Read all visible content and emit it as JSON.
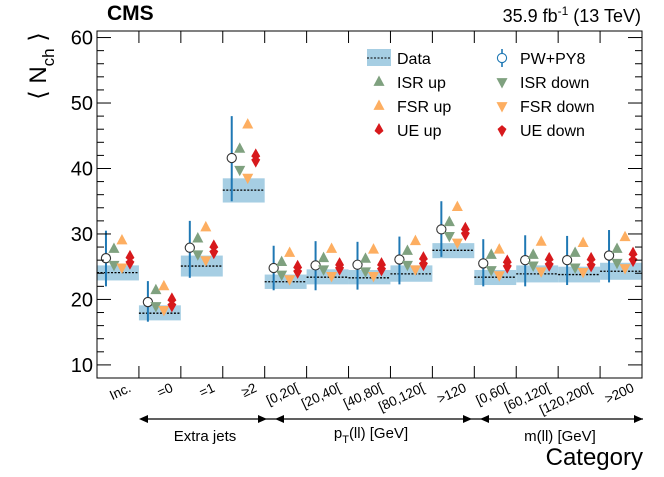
{
  "header": {
    "experiment": "CMS",
    "lumi_value": "35.9 fb",
    "lumi_exp": "-1",
    "lumi_energy": " (13 TeV)"
  },
  "axis_titles": {
    "y_main": "⟨ N",
    "y_sub": "ch",
    "y_close": " ⟩",
    "x": "Category"
  },
  "groups": [
    {
      "label": "Extra jets"
    },
    {
      "label_main": "p",
      "label_sub": "T",
      "label_rest": "(ll) [GeV]"
    },
    {
      "label": "m(ll) [GeV]"
    }
  ],
  "legend": [
    {
      "key": "data",
      "label": "Data"
    },
    {
      "key": "pwpy8",
      "label": "PW+PY8"
    },
    {
      "key": "isr_up",
      "label": "ISR up"
    },
    {
      "key": "isr_down",
      "label": "ISR down"
    },
    {
      "key": "fsr_up",
      "label": "FSR up"
    },
    {
      "key": "fsr_down",
      "label": "FSR down"
    },
    {
      "key": "ue_up",
      "label": "UE up"
    },
    {
      "key": "ue_down",
      "label": "UE down"
    }
  ],
  "colors": {
    "data_band": "#a6cee3",
    "pwpy8": "#1f78b4",
    "isr": "#7fa17f",
    "fsr": "#fdae61",
    "ue": "#d7191c"
  },
  "chart_data": {
    "type": "scatter",
    "title": "",
    "xlabel": "Category",
    "ylabel": "⟨ N_ch ⟩",
    "ylim": [
      8,
      61
    ],
    "yticks": [
      10,
      20,
      30,
      40,
      50,
      60
    ],
    "categories": [
      "Inc.",
      "=0",
      "=1",
      "≥2",
      "[0,20[",
      "[20,40[",
      "[40,80[",
      "[80,120[",
      ">120",
      "[0,60[",
      "[60,120[",
      "[120,200[",
      ">200"
    ],
    "group_ranges": [
      [
        1,
        3
      ],
      [
        4,
        8
      ],
      [
        9,
        12
      ]
    ],
    "data": {
      "values": [
        24.1,
        17.9,
        25.1,
        36.7,
        22.7,
        23.4,
        23.3,
        23.9,
        27.5,
        23.4,
        23.9,
        23.8,
        24.3
      ],
      "band_low": [
        22.9,
        16.8,
        23.5,
        34.8,
        21.6,
        22.3,
        22.3,
        22.7,
        26.3,
        22.2,
        22.6,
        22.6,
        23.0
      ],
      "band_high": [
        25.2,
        19.1,
        26.7,
        38.5,
        23.8,
        24.6,
        24.5,
        25.2,
        28.6,
        24.5,
        25.2,
        25.0,
        25.6
      ]
    },
    "series": [
      {
        "name": "PW+PY8",
        "values": [
          26.3,
          19.6,
          27.9,
          41.6,
          24.8,
          25.2,
          25.3,
          26.1,
          30.7,
          25.5,
          26.0,
          26.0,
          26.7
        ],
        "err_low": [
          22.0,
          16.6,
          23.3,
          35.0,
          21.4,
          21.4,
          21.5,
          22.3,
          26.5,
          22.0,
          22.0,
          22.2,
          22.6
        ],
        "err_high": [
          30.5,
          22.8,
          32.0,
          48.0,
          28.2,
          28.9,
          28.8,
          29.6,
          35.0,
          29.2,
          29.8,
          29.7,
          30.6
        ]
      },
      {
        "name": "ISR up",
        "values": [
          27.7,
          21.4,
          29.3,
          43.0,
          25.7,
          26.3,
          26.2,
          27.4,
          31.8,
          26.8,
          26.8,
          27.1,
          27.7
        ]
      },
      {
        "name": "ISR down",
        "values": [
          25.3,
          19.0,
          26.9,
          39.8,
          23.8,
          24.6,
          24.3,
          25.3,
          29.7,
          24.5,
          25.2,
          24.9,
          25.6
        ]
      },
      {
        "name": "FSR up",
        "values": [
          29.0,
          22.0,
          31.0,
          46.7,
          27.1,
          27.7,
          27.6,
          28.9,
          34.1,
          27.6,
          28.8,
          28.6,
          29.5
        ]
      },
      {
        "name": "FSR down",
        "values": [
          24.9,
          18.4,
          26.0,
          38.6,
          23.1,
          23.6,
          23.6,
          24.6,
          28.7,
          23.7,
          24.3,
          24.2,
          24.8
        ]
      },
      {
        "name": "UE up",
        "values": [
          26.5,
          20.0,
          28.1,
          42.0,
          25.0,
          25.4,
          25.4,
          26.3,
          30.8,
          25.8,
          26.2,
          26.2,
          27.0
        ]
      },
      {
        "name": "UE down",
        "values": [
          25.6,
          19.1,
          27.2,
          41.2,
          24.2,
          24.7,
          24.6,
          25.4,
          30.0,
          25.0,
          25.3,
          25.2,
          26.0
        ]
      }
    ]
  }
}
